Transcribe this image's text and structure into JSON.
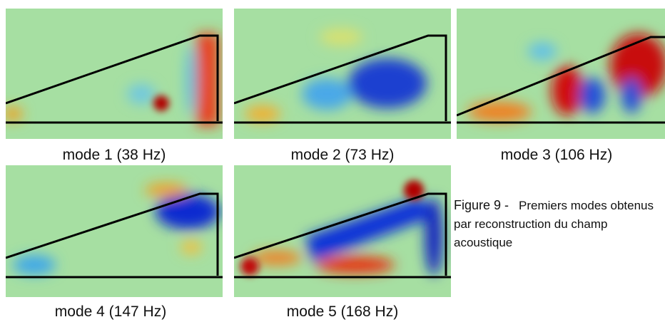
{
  "panels": [
    {
      "label": "mode 1 (38 Hz)"
    },
    {
      "label": "mode 2 (73 Hz)"
    },
    {
      "label": "mode 3 (106 Hz)"
    },
    {
      "label": "mode 4 (147 Hz)"
    },
    {
      "label": "mode 5 (168 Hz)"
    }
  ],
  "caption": {
    "label": "Figure 9 -",
    "text": "Premiers modes obtenus par reconstruction du champ acoustique"
  }
}
